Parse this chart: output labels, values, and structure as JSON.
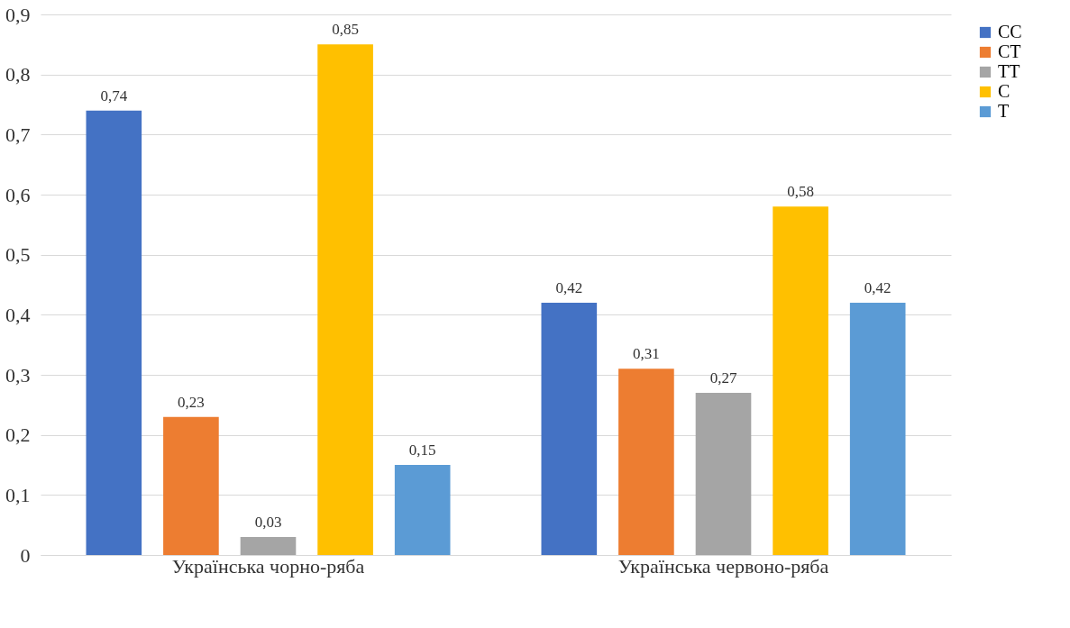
{
  "chart_data": {
    "type": "bar",
    "categories": [
      "Українська чорно-ряба",
      "Українська червоно-ряба"
    ],
    "series": [
      {
        "name": "CC",
        "color": "#4472c4",
        "values": [
          0.74,
          0.42
        ],
        "value_labels": [
          "0,74",
          "0,42"
        ]
      },
      {
        "name": "CT",
        "color": "#ed7d31",
        "values": [
          0.23,
          0.31
        ],
        "value_labels": [
          "0,23",
          "0,31"
        ]
      },
      {
        "name": "TT",
        "color": "#a5a5a5",
        "values": [
          0.03,
          0.27
        ],
        "value_labels": [
          "0,03",
          "0,27"
        ]
      },
      {
        "name": "C",
        "color": "#ffc000",
        "values": [
          0.85,
          0.58
        ],
        "value_labels": [
          "0,85",
          "0,58"
        ]
      },
      {
        "name": "T",
        "color": "#5b9bd5",
        "values": [
          0.15,
          0.42
        ],
        "value_labels": [
          "0,15",
          "0,42"
        ]
      }
    ],
    "ylim": [
      0,
      0.9
    ],
    "yticks": [
      0,
      {
        "value": 0.1,
        "label": "0,1"
      },
      {
        "value": 0.2,
        "label": "0,2"
      },
      {
        "value": 0.3,
        "label": "0,3"
      },
      {
        "value": 0.4,
        "label": "0,4"
      },
      {
        "value": 0.5,
        "label": "0,5"
      },
      {
        "value": 0.6,
        "label": "0,6"
      },
      {
        "value": 0.7,
        "label": "0,7"
      },
      {
        "value": 0.8,
        "label": "0,8"
      },
      {
        "value": 0.9,
        "label": "0,9"
      }
    ],
    "grid": "y",
    "legend": "right"
  }
}
